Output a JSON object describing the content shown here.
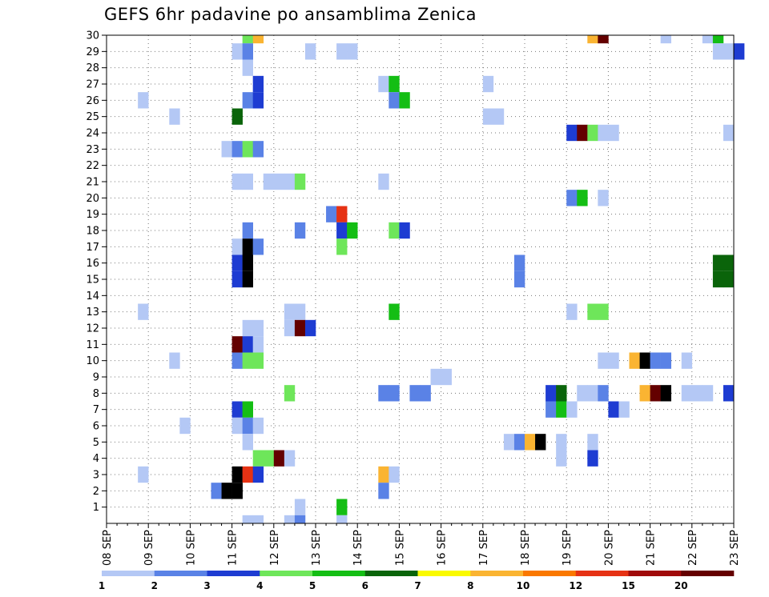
{
  "chart_data": {
    "type": "heatmap",
    "title": "GEFS 6hr padavine po ansamblima Zenica",
    "x_tick_labels": [
      "08 SEP",
      "09 SEP",
      "10 SEP",
      "11 SEP",
      "12 SEP",
      "13 SEP",
      "14 SEP",
      "15 SEP",
      "16 SEP",
      "17 SEP",
      "18 SEP",
      "19 SEP",
      "20 SEP",
      "21 SEP",
      "22 SEP",
      "23 SEP"
    ],
    "x_range": [
      "08 SEP 00z",
      "23 SEP 00z"
    ],
    "x_step_hours": 6,
    "y_tick_labels": [
      "1",
      "2",
      "3",
      "4",
      "5",
      "6",
      "7",
      "8",
      "9",
      "10",
      "11",
      "12",
      "13",
      "14",
      "15",
      "16",
      "17",
      "18",
      "19",
      "20",
      "21",
      "22",
      "23",
      "24",
      "25",
      "26",
      "27",
      "28",
      "29",
      "30"
    ],
    "y_range": [
      0,
      30
    ],
    "grid": true,
    "legend": {
      "placement": "bottom",
      "tick_labels": [
        "1",
        "2",
        "3",
        "4",
        "5",
        "6",
        "7",
        "8",
        "10",
        "12",
        "15",
        "20"
      ],
      "colors": [
        "#b4c8f5",
        "#5a82e6",
        "#1e3cd2",
        "#6ee65a",
        "#14be14",
        "#0a640a",
        "#fafa00",
        "#fab432",
        "#fa7800",
        "#e63214",
        "#a00a0a",
        "#640000"
      ]
    },
    "cells": [
      {
        "m": 30,
        "s": [
          [
            13,
            4
          ],
          [
            14,
            8
          ]
        ]
      },
      {
        "m": 30,
        "s": [
          [
            46,
            8
          ],
          [
            47,
            12
          ]
        ]
      },
      {
        "m": 30,
        "s": [
          [
            53,
            1
          ],
          [
            57,
            1
          ],
          [
            58,
            5
          ]
        ]
      },
      {
        "m": 29,
        "s": [
          [
            12,
            1
          ],
          [
            13,
            2
          ],
          [
            19,
            1
          ],
          [
            22,
            1
          ],
          [
            23,
            1
          ],
          [
            58,
            1
          ],
          [
            59,
            1
          ],
          [
            60,
            3
          ]
        ]
      },
      {
        "m": 28,
        "s": [
          [
            13,
            1
          ]
        ]
      },
      {
        "m": 27,
        "s": [
          [
            14,
            3
          ],
          [
            26,
            1
          ],
          [
            27,
            5
          ],
          [
            36,
            1
          ]
        ]
      },
      {
        "m": 26,
        "s": [
          [
            3,
            1
          ],
          [
            13,
            2
          ],
          [
            14,
            3
          ],
          [
            27,
            2
          ],
          [
            28,
            5
          ]
        ]
      },
      {
        "m": 25,
        "s": [
          [
            6,
            1
          ],
          [
            12,
            6
          ],
          [
            36,
            1
          ],
          [
            37,
            1
          ]
        ]
      },
      {
        "m": 24,
        "s": [
          [
            44,
            3
          ],
          [
            45,
            12
          ],
          [
            46,
            4
          ],
          [
            47,
            1
          ],
          [
            48,
            1
          ],
          [
            59,
            1
          ]
        ]
      },
      {
        "m": 23,
        "s": [
          [
            11,
            1
          ],
          [
            12,
            2
          ],
          [
            13,
            4
          ],
          [
            14,
            2
          ]
        ]
      },
      {
        "m": 21,
        "s": [
          [
            12,
            1
          ],
          [
            13,
            1
          ],
          [
            15,
            1
          ],
          [
            16,
            1
          ],
          [
            17,
            1
          ],
          [
            18,
            4
          ],
          [
            26,
            1
          ]
        ]
      },
      {
        "m": 20,
        "s": [
          [
            44,
            2
          ],
          [
            45,
            5
          ],
          [
            47,
            1
          ]
        ]
      },
      {
        "m": 19,
        "s": [
          [
            21,
            2
          ],
          [
            22,
            10
          ]
        ]
      },
      {
        "m": 18,
        "s": [
          [
            13,
            2
          ],
          [
            18,
            2
          ],
          [
            22,
            3
          ],
          [
            23,
            5
          ],
          [
            27,
            4
          ],
          [
            28,
            3
          ]
        ]
      },
      {
        "m": 17,
        "s": [
          [
            12,
            1
          ],
          [
            13,
            15
          ],
          [
            14,
            2
          ],
          [
            22,
            4
          ]
        ]
      },
      {
        "m": 16,
        "s": [
          [
            12,
            3
          ],
          [
            13,
            20
          ],
          [
            39,
            2
          ],
          [
            58,
            6
          ],
          [
            59,
            6
          ]
        ]
      },
      {
        "m": 15,
        "s": [
          [
            12,
            3
          ],
          [
            13,
            20
          ],
          [
            39,
            2
          ],
          [
            58,
            6
          ],
          [
            59,
            6
          ]
        ]
      },
      {
        "m": 14,
        "s": []
      },
      {
        "m": 13,
        "s": [
          [
            3,
            1
          ],
          [
            17,
            1
          ],
          [
            18,
            1
          ],
          [
            27,
            5
          ],
          [
            44,
            1
          ],
          [
            46,
            4
          ],
          [
            47,
            4
          ]
        ]
      },
      {
        "m": 12,
        "s": [
          [
            13,
            1
          ],
          [
            14,
            1
          ],
          [
            17,
            1
          ],
          [
            18,
            12
          ],
          [
            19,
            3
          ]
        ]
      },
      {
        "m": 11,
        "s": [
          [
            12,
            12
          ],
          [
            13,
            3
          ],
          [
            14,
            1
          ]
        ]
      },
      {
        "m": 10,
        "s": [
          [
            6,
            1
          ],
          [
            12,
            2
          ],
          [
            13,
            4
          ],
          [
            14,
            4
          ],
          [
            47,
            1
          ],
          [
            48,
            1
          ],
          [
            50,
            8
          ],
          [
            51,
            20
          ],
          [
            52,
            2
          ],
          [
            53,
            2
          ],
          [
            55,
            1
          ]
        ]
      },
      {
        "m": 9,
        "s": [
          [
            31,
            1
          ],
          [
            32,
            1
          ]
        ]
      },
      {
        "m": 8,
        "s": [
          [
            17,
            4
          ],
          [
            26,
            2
          ],
          [
            27,
            2
          ],
          [
            29,
            2
          ],
          [
            30,
            2
          ],
          [
            42,
            3
          ],
          [
            43,
            6
          ],
          [
            45,
            1
          ],
          [
            46,
            1
          ],
          [
            47,
            2
          ],
          [
            51,
            8
          ],
          [
            52,
            12
          ],
          [
            53,
            15
          ],
          [
            55,
            1
          ],
          [
            56,
            1
          ],
          [
            57,
            1
          ],
          [
            59,
            3
          ]
        ]
      },
      {
        "m": 7,
        "s": [
          [
            12,
            3
          ],
          [
            13,
            5
          ],
          [
            42,
            2
          ],
          [
            43,
            5
          ],
          [
            44,
            1
          ],
          [
            48,
            3
          ],
          [
            49,
            1
          ]
        ]
      },
      {
        "m": 6,
        "s": [
          [
            7,
            1
          ],
          [
            12,
            1
          ],
          [
            13,
            2
          ],
          [
            14,
            1
          ]
        ]
      },
      {
        "m": 5,
        "s": [
          [
            13,
            1
          ],
          [
            38,
            1
          ],
          [
            39,
            2
          ],
          [
            40,
            8
          ],
          [
            41,
            20
          ],
          [
            43,
            1
          ],
          [
            46,
            1
          ]
        ]
      },
      {
        "m": 4,
        "s": [
          [
            14,
            4
          ],
          [
            15,
            4
          ],
          [
            16,
            12
          ],
          [
            17,
            1
          ],
          [
            43,
            1
          ],
          [
            46,
            3
          ]
        ]
      },
      {
        "m": 3,
        "s": [
          [
            3,
            1
          ],
          [
            12,
            15
          ],
          [
            13,
            10
          ],
          [
            14,
            3
          ],
          [
            26,
            8
          ],
          [
            27,
            1
          ]
        ]
      },
      {
        "m": 2,
        "s": [
          [
            10,
            2
          ],
          [
            11,
            20
          ],
          [
            12,
            20
          ],
          [
            26,
            2
          ]
        ]
      },
      {
        "m": 1,
        "s": [
          [
            18,
            1
          ],
          [
            22,
            5
          ]
        ]
      },
      {
        "m": 0,
        "s": [
          [
            13,
            1
          ],
          [
            14,
            1
          ],
          [
            17,
            1
          ],
          [
            18,
            2
          ],
          [
            22,
            1
          ]
        ]
      }
    ]
  }
}
